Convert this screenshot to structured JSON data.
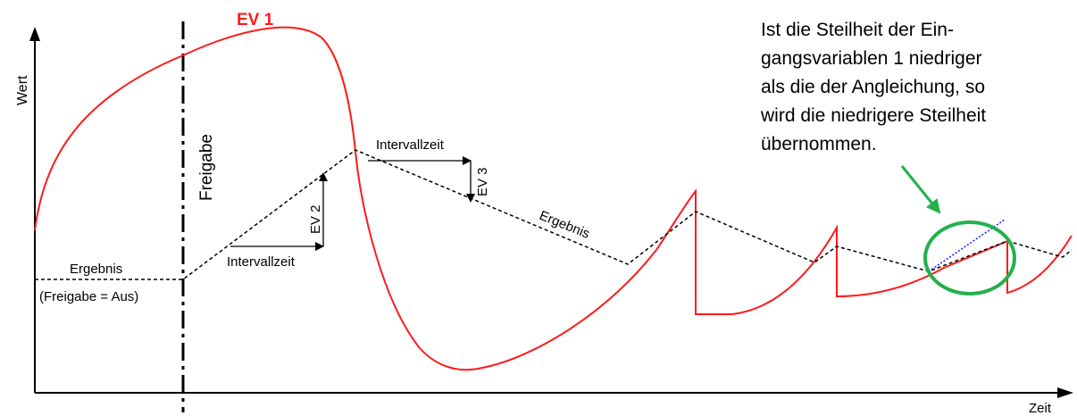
{
  "axes": {
    "y_label": "Wert",
    "x_label": "Zeit"
  },
  "labels": {
    "ev1": "EV 1",
    "freigabe": "Freigabe",
    "ergebnis_left": "Ergebnis",
    "freigabe_aus": "(Freigabe = Aus)",
    "intervallzeit_1": "Intervallzeit",
    "ev2": "EV 2",
    "intervallzeit_2": "Intervallzeit",
    "ev3": "EV 3",
    "ergebnis_mid": "Ergebnis"
  },
  "note": {
    "lines": [
      "Ist die Steilheit der Ein-",
      "gangsvariablen 1 niedriger",
      "als die der Angleichung, so",
      "wird die niedrigere Steilheit",
      "übernommen."
    ]
  },
  "colors": {
    "ev1_curve": "#ff1a1a",
    "result_line": "#000000",
    "highlight_circle": "#22b14c",
    "arrow": "#22b14c",
    "slope_line": "#1a1aff"
  }
}
